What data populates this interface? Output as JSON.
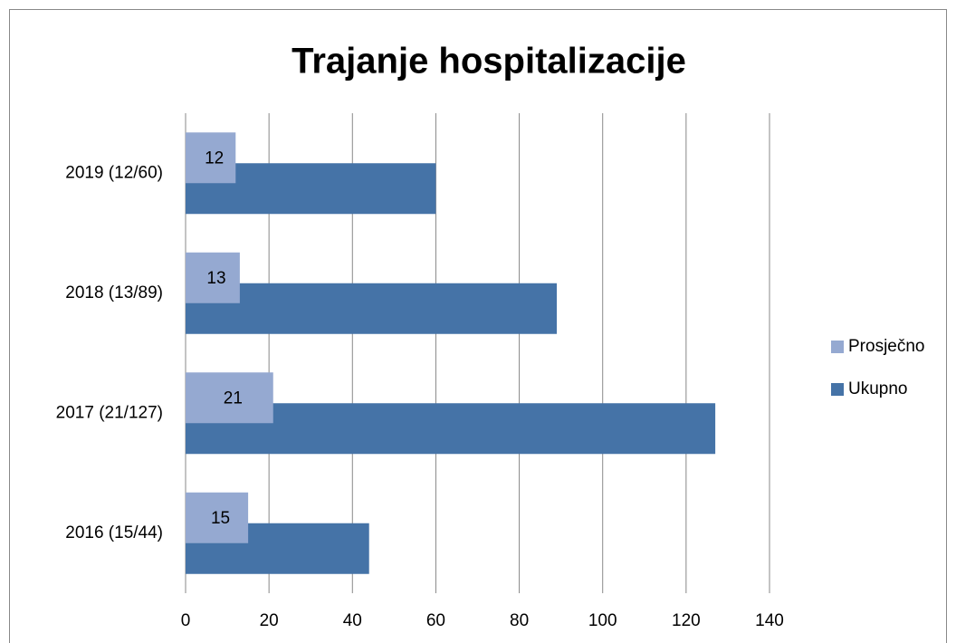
{
  "chart_data": {
    "type": "bar",
    "orientation": "horizontal",
    "title": "Trajanje hospitalizacije",
    "categories": [
      "2019 (12/60)",
      "2018 (13/89)",
      "2017 (21/127)",
      "2016 (15/44)"
    ],
    "series": [
      {
        "name": "Prosječno",
        "color": "#95a9d1",
        "values": [
          12,
          13,
          21,
          15
        ]
      },
      {
        "name": "Ukupno",
        "color": "#4573a7",
        "values": [
          60,
          89,
          127,
          44
        ]
      }
    ],
    "xlim": [
      0,
      140
    ],
    "xticks": [
      0,
      20,
      40,
      60,
      80,
      100,
      120,
      140
    ],
    "grid": true,
    "legend": "right"
  }
}
